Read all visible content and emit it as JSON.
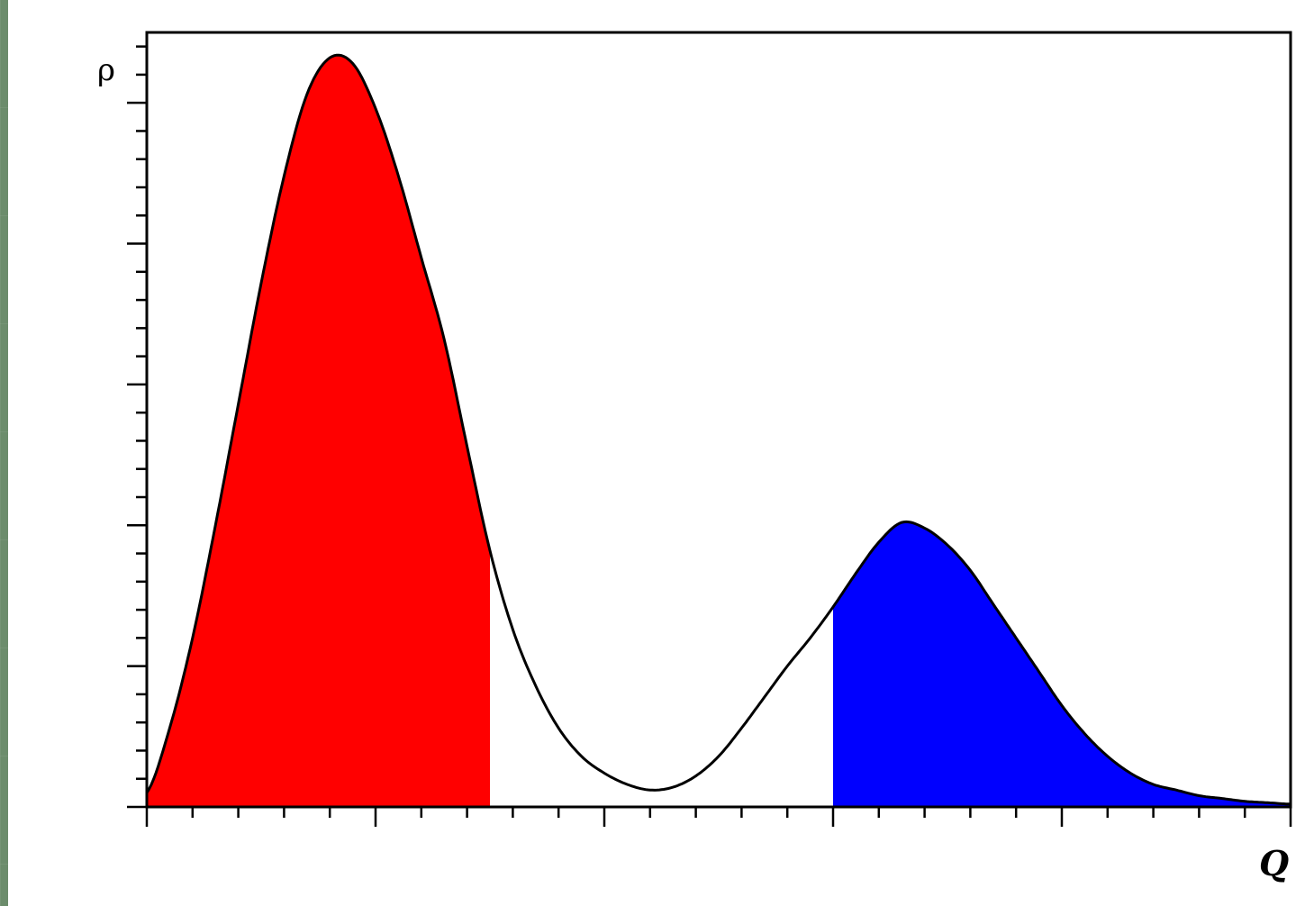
{
  "chart_data": {
    "type": "area",
    "title": "",
    "xlabel": "Q",
    "ylabel": "ρ",
    "xlim": [
      0,
      25
    ],
    "ylim": [
      0,
      27.5
    ],
    "grid": false,
    "x_ticks": {
      "major_every": 5,
      "minor_every": 1
    },
    "y_ticks": {
      "major_every": 5,
      "minor_every": 1
    },
    "curve": {
      "x": [
        0,
        0.5,
        1,
        1.5,
        2,
        2.5,
        3,
        3.5,
        4,
        4.5,
        5,
        5.5,
        6,
        6.5,
        7,
        7.5,
        8,
        8.5,
        9,
        9.5,
        10,
        10.5,
        11,
        11.5,
        12,
        12.5,
        13,
        13.5,
        14,
        14.5,
        15,
        15.5,
        16,
        16.5,
        17,
        17.5,
        18,
        18.5,
        19,
        19.5,
        20,
        20.5,
        21,
        21.5,
        22,
        22.5,
        23,
        23.5,
        24,
        24.5,
        25
      ],
      "y": [
        0.5,
        2.8,
        6.0,
        10.0,
        14.3,
        18.6,
        22.4,
        25.3,
        26.6,
        26.4,
        24.8,
        22.4,
        19.5,
        16.6,
        12.8,
        9.1,
        6.3,
        4.3,
        2.8,
        1.8,
        1.2,
        0.8,
        0.6,
        0.7,
        1.1,
        1.8,
        2.8,
        3.9,
        5.0,
        6.0,
        7.1,
        8.3,
        9.4,
        10.1,
        9.9,
        9.3,
        8.4,
        7.2,
        6.0,
        4.8,
        3.6,
        2.6,
        1.8,
        1.2,
        0.8,
        0.6,
        0.4,
        0.3,
        0.2,
        0.15,
        0.1
      ]
    },
    "regions": [
      {
        "from": 0,
        "to": 7.5,
        "color": "#ff0000"
      },
      {
        "from": 15,
        "to": 25,
        "color": "#0000ff"
      }
    ],
    "line_color": "#000000"
  }
}
